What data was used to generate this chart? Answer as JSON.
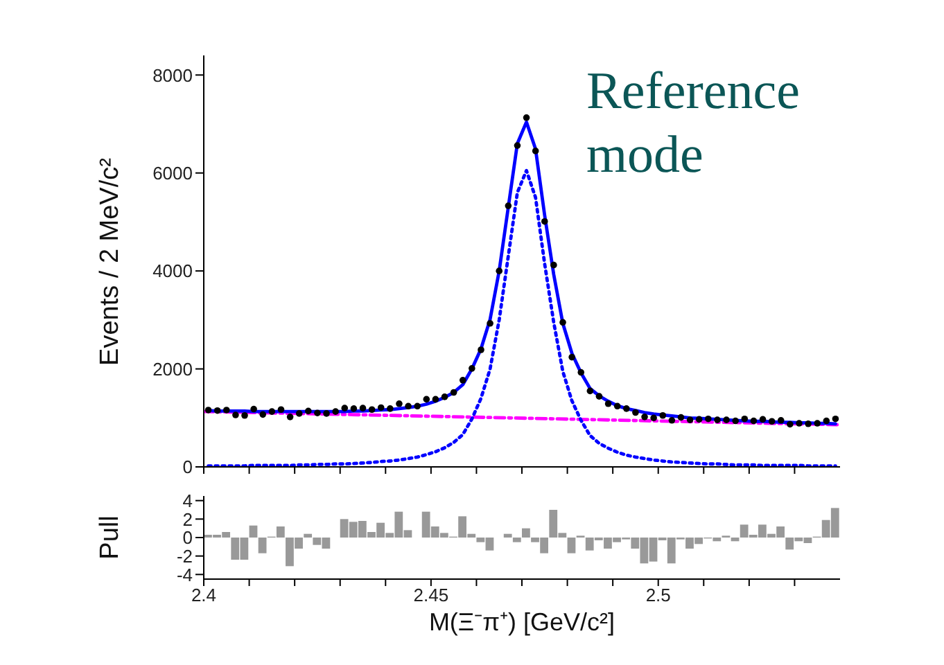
{
  "chart_data": [
    {
      "type": "scatter",
      "ylabel": "Events / 2 MeV/c²",
      "annotations": [
        "Reference mode"
      ],
      "tick_labels": "y",
      "xlim": [
        2.4,
        2.54
      ],
      "xticks": [
        {
          "value": 2.4,
          "label": null
        },
        {
          "value": 2.41,
          "label": null
        },
        {
          "value": 2.42,
          "label": null
        },
        {
          "value": 2.43,
          "label": null
        },
        {
          "value": 2.44,
          "label": null
        },
        {
          "value": 2.45,
          "label": null
        },
        {
          "value": 2.46,
          "label": null
        },
        {
          "value": 2.47,
          "label": null
        },
        {
          "value": 2.48,
          "label": null
        },
        {
          "value": 2.49,
          "label": null
        },
        {
          "value": 2.5,
          "label": null
        },
        {
          "value": 2.51,
          "label": null
        },
        {
          "value": 2.52,
          "label": null
        },
        {
          "value": 2.53,
          "label": null
        }
      ],
      "ylim": [
        0,
        8400
      ],
      "yticks": [
        0,
        2000,
        4000,
        6000,
        8000
      ],
      "x": [
        2.401,
        2.403,
        2.405,
        2.407,
        2.409,
        2.411,
        2.413,
        2.415,
        2.417,
        2.419,
        2.421,
        2.423,
        2.425,
        2.427,
        2.429,
        2.431,
        2.433,
        2.435,
        2.437,
        2.439,
        2.441,
        2.443,
        2.445,
        2.447,
        2.449,
        2.451,
        2.453,
        2.455,
        2.457,
        2.459,
        2.461,
        2.463,
        2.465,
        2.467,
        2.469,
        2.471,
        2.473,
        2.475,
        2.477,
        2.479,
        2.481,
        2.483,
        2.485,
        2.487,
        2.489,
        2.491,
        2.493,
        2.495,
        2.497,
        2.499,
        2.501,
        2.503,
        2.505,
        2.507,
        2.509,
        2.511,
        2.513,
        2.515,
        2.517,
        2.519,
        2.521,
        2.523,
        2.525,
        2.527,
        2.529,
        2.531,
        2.533,
        2.535,
        2.537,
        2.539
      ],
      "series": [
        {
          "type": "line",
          "color": "#ff00ff",
          "line_style": "dashed",
          "marker": "none",
          "x": [
            2.4,
            2.54
          ],
          "values": [
            1130,
            860
          ]
        },
        {
          "type": "line",
          "color": "#0000ff",
          "line_style": "dotted",
          "marker": "none",
          "values": [
            20,
            20,
            20,
            20,
            20,
            30,
            30,
            30,
            30,
            30,
            40,
            40,
            50,
            50,
            60,
            60,
            70,
            80,
            90,
            110,
            120,
            140,
            170,
            200,
            250,
            310,
            390,
            500,
            660,
            980,
            1400,
            2000,
            3000,
            4300,
            5600,
            6050,
            5500,
            4150,
            2950,
            1950,
            1350,
            950,
            640,
            480,
            380,
            300,
            240,
            200,
            170,
            140,
            120,
            100,
            90,
            80,
            70,
            60,
            60,
            50,
            40,
            40,
            40,
            30,
            30,
            30,
            30,
            30,
            20,
            20,
            20,
            20
          ]
        },
        {
          "type": "line",
          "color": "#0000ff",
          "line_style": "solid",
          "marker": "none",
          "values": [
            1150,
            1140,
            1140,
            1140,
            1140,
            1130,
            1130,
            1130,
            1130,
            1130,
            1130,
            1130,
            1130,
            1130,
            1130,
            1130,
            1140,
            1140,
            1150,
            1160,
            1170,
            1190,
            1210,
            1240,
            1280,
            1340,
            1420,
            1520,
            1680,
            2000,
            2410,
            3010,
            4000,
            5300,
            6600,
            7040,
            6490,
            5140,
            3930,
            2930,
            2320,
            1920,
            1600,
            1450,
            1340,
            1250,
            1190,
            1150,
            1110,
            1080,
            1060,
            1040,
            1020,
            1000,
            990,
            980,
            970,
            960,
            950,
            940,
            930,
            930,
            920,
            910,
            910,
            900,
            900,
            890,
            890,
            880
          ]
        },
        {
          "type": "scatter",
          "color": "#000000",
          "marker": "circle",
          "values": [
            1160,
            1150,
            1160,
            1060,
            1050,
            1180,
            1070,
            1130,
            1170,
            1020,
            1090,
            1140,
            1100,
            1090,
            1130,
            1200,
            1190,
            1200,
            1170,
            1210,
            1190,
            1290,
            1240,
            1240,
            1380,
            1380,
            1430,
            1520,
            1770,
            2010,
            2390,
            2930,
            4000,
            5330,
            6560,
            7130,
            6450,
            5010,
            4120,
            2950,
            2240,
            1930,
            1550,
            1440,
            1290,
            1240,
            1190,
            1110,
            1020,
            1000,
            1050,
            950,
            1010,
            960,
            970,
            980,
            960,
            960,
            940,
            980,
            940,
            970,
            930,
            950,
            870,
            890,
            880,
            890,
            940,
            980
          ]
        }
      ]
    },
    {
      "type": "histogram",
      "ylabel": "Pull",
      "xlabel": "M(Ξ⁻π⁺) [GeV/c²]",
      "color": "#999999",
      "xlim": [
        2.4,
        2.54
      ],
      "xticks": [
        2.4,
        {
          "value": 2.41,
          "label": null
        },
        {
          "value": 2.42,
          "label": null
        },
        {
          "value": 2.43,
          "label": null
        },
        {
          "value": 2.44,
          "label": null
        },
        2.45,
        {
          "value": 2.46,
          "label": null
        },
        {
          "value": 2.47,
          "label": null
        },
        {
          "value": 2.48,
          "label": null
        },
        {
          "value": 2.49,
          "label": null
        },
        2.5,
        {
          "value": 2.51,
          "label": null
        },
        {
          "value": 2.52,
          "label": null
        },
        {
          "value": 2.53,
          "label": null
        }
      ],
      "ylim": [
        -4.5,
        4.5
      ],
      "yticks": [
        4,
        2,
        0,
        -2,
        -4
      ],
      "bins": [
        2.4,
        2.402,
        2.404,
        2.406,
        2.408,
        2.41,
        2.412,
        2.414,
        2.416,
        2.418,
        2.42,
        2.422,
        2.424,
        2.426,
        2.428,
        2.43,
        2.432,
        2.434,
        2.436,
        2.438,
        2.44,
        2.442,
        2.444,
        2.446,
        2.448,
        2.45,
        2.452,
        2.454,
        2.456,
        2.458,
        2.46,
        2.462,
        2.464,
        2.466,
        2.468,
        2.47,
        2.472,
        2.474,
        2.476,
        2.478,
        2.48,
        2.482,
        2.484,
        2.486,
        2.488,
        2.49,
        2.492,
        2.494,
        2.496,
        2.498,
        2.5,
        2.502,
        2.504,
        2.506,
        2.508,
        2.51,
        2.512,
        2.514,
        2.516,
        2.518,
        2.52,
        2.522,
        2.524,
        2.526,
        2.528,
        2.53,
        2.532,
        2.534,
        2.536,
        2.538,
        2.54
      ],
      "values": [
        0.3,
        0.3,
        0.6,
        -2.4,
        -2.4,
        1.3,
        -1.7,
        0.1,
        1.2,
        -3.1,
        -1.2,
        0.4,
        -0.8,
        -1.2,
        0,
        2.0,
        1.7,
        1.8,
        0.6,
        1.6,
        0.5,
        2.8,
        0.8,
        0,
        2.8,
        1.2,
        0.5,
        0.1,
        2.3,
        0.4,
        -0.5,
        -1.4,
        0,
        0.4,
        -0.5,
        1.0,
        -0.5,
        -1.7,
        3.0,
        0.5,
        -1.7,
        0.2,
        -1.4,
        -0.3,
        -1.2,
        -0.5,
        -0.2,
        -1.2,
        -2.8,
        -2.6,
        -0.3,
        -2.8,
        -0.2,
        -1.2,
        -0.7,
        -0.1,
        -0.4,
        0.2,
        -0.4,
        1.4,
        0.3,
        1.4,
        0.4,
        1.2,
        -1.3,
        -0.4,
        -0.6,
        0.1,
        1.9,
        3.2
      ]
    }
  ]
}
